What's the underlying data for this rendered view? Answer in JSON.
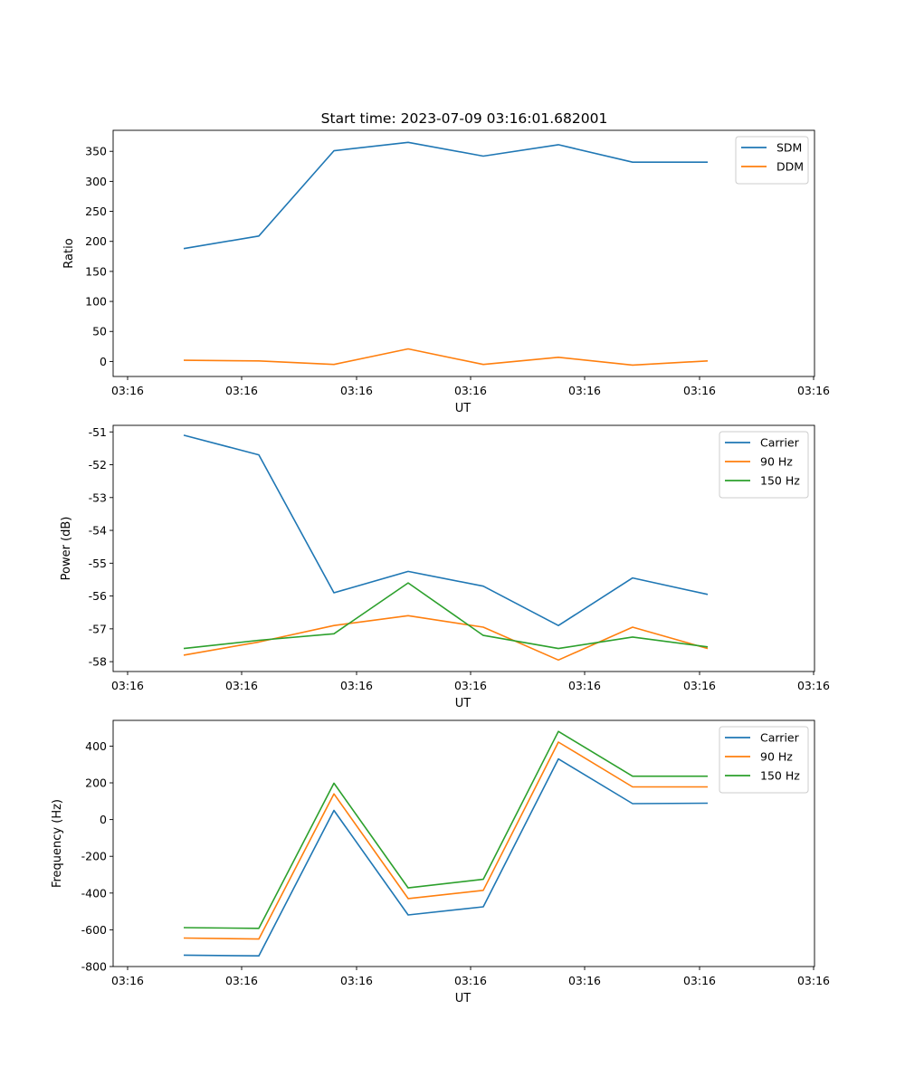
{
  "figure": {
    "title": "Start time: 2023-07-09 03:16:01.682001"
  },
  "colors": {
    "blue": "#1f77b4",
    "orange": "#ff7f0e",
    "green": "#2ca02c"
  },
  "chart_data": [
    {
      "type": "line",
      "xlabel": "UT",
      "ylabel": "Ratio",
      "xticks": [
        "03:16",
        "03:16",
        "03:16",
        "03:16",
        "03:16",
        "03:16",
        "03:16"
      ],
      "yticks": [
        0,
        50,
        100,
        150,
        200,
        250,
        300,
        350
      ],
      "ylim": [
        -25,
        385
      ],
      "legend": "top-right",
      "series": [
        {
          "name": "SDM",
          "color": "#1f77b4",
          "values": [
            188,
            209,
            351,
            365,
            342,
            361,
            332,
            332
          ]
        },
        {
          "name": "DDM",
          "color": "#ff7f0e",
          "values": [
            2,
            1,
            -5,
            21,
            -5,
            7,
            -6,
            1
          ]
        }
      ]
    },
    {
      "type": "line",
      "xlabel": "UT",
      "ylabel": "Power (dB)",
      "xticks": [
        "03:16",
        "03:16",
        "03:16",
        "03:16",
        "03:16",
        "03:16",
        "03:16"
      ],
      "yticks": [
        -51,
        -52,
        -53,
        -54,
        -55,
        -56,
        -57,
        -58
      ],
      "ylim": [
        -58.3,
        -50.8
      ],
      "legend": "top-right",
      "series": [
        {
          "name": "Carrier",
          "color": "#1f77b4",
          "values": [
            -51.1,
            -51.7,
            -55.9,
            -55.25,
            -55.7,
            -56.9,
            -55.45,
            -55.95
          ]
        },
        {
          "name": "90 Hz",
          "color": "#ff7f0e",
          "values": [
            -57.8,
            -57.4,
            -56.9,
            -56.6,
            -56.95,
            -57.95,
            -56.95,
            -57.6
          ]
        },
        {
          "name": "150 Hz",
          "color": "#2ca02c",
          "values": [
            -57.6,
            -57.35,
            -57.15,
            -55.6,
            -57.2,
            -57.6,
            -57.25,
            -57.55
          ]
        }
      ]
    },
    {
      "type": "line",
      "xlabel": "UT",
      "ylabel": "Frequency (Hz)",
      "xticks": [
        "03:16",
        "03:16",
        "03:16",
        "03:16",
        "03:16",
        "03:16",
        "03:16"
      ],
      "yticks": [
        400,
        200,
        0,
        -200,
        -400,
        -600,
        -800
      ],
      "ylim": [
        -800,
        540
      ],
      "legend": "top-right",
      "series": [
        {
          "name": "Carrier",
          "color": "#1f77b4",
          "values": [
            -738,
            -742,
            50,
            -519,
            -475,
            330,
            87,
            89
          ]
        },
        {
          "name": "90 Hz",
          "color": "#ff7f0e",
          "values": [
            -645,
            -650,
            140,
            -430,
            -385,
            422,
            178,
            178
          ]
        },
        {
          "name": "150 Hz",
          "color": "#2ca02c",
          "values": [
            -588,
            -592,
            198,
            -372,
            -325,
            480,
            236,
            236
          ]
        }
      ]
    }
  ]
}
